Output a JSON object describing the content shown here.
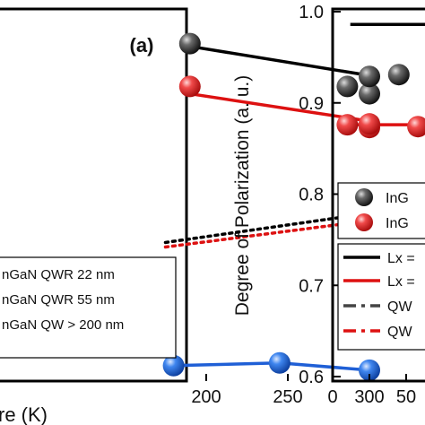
{
  "chart_data": [
    {
      "panel_label": "(a)",
      "type": "line",
      "xlabel": "re (K)",
      "x_ticks": [
        200,
        250,
        300
      ],
      "xlim": [
        175,
        320
      ],
      "ylim": [
        0.6,
        1.0
      ],
      "series": [
        {
          "kind": "line",
          "color": "#000000",
          "x": [
            190,
            300
          ],
          "y": [
            0.962,
            0.93
          ]
        },
        {
          "kind": "line",
          "color": "#dd1111",
          "x": [
            190,
            300
          ],
          "y": [
            0.91,
            0.88
          ]
        },
        {
          "kind": "scatter",
          "color": "#2a2a2a",
          "x": [
            190,
            300
          ],
          "y": [
            0.965,
            0.91
          ]
        },
        {
          "kind": "scatter",
          "color": "#e52222",
          "x": [
            190,
            300
          ],
          "y": [
            0.918,
            0.873
          ]
        },
        {
          "kind": "dotted",
          "color": "#000000",
          "x": [
            175,
            300
          ],
          "y": [
            0.747,
            0.779
          ]
        },
        {
          "kind": "dotted",
          "color": "#dd1111",
          "x": [
            175,
            300
          ],
          "y": [
            0.742,
            0.771
          ]
        },
        {
          "kind": "line",
          "color": "#1f5fd6",
          "x": [
            180,
            245,
            300
          ],
          "y": [
            0.612,
            0.615,
            0.607
          ]
        },
        {
          "kind": "scatter",
          "color": "#2a72e0",
          "x": [
            180,
            245,
            300
          ],
          "y": [
            0.612,
            0.615,
            0.607
          ]
        }
      ],
      "legend": [
        "nGaN QWR 22 nm",
        "nGaN QWR 55 nm",
        "nGaN QW > 200 nm"
      ]
    },
    {
      "type": "line",
      "ylabel": "Degree of Polarization (a. u.)",
      "y_ticks": [
        "1.0",
        "0.9",
        "0.8",
        "0.7",
        "0.6"
      ],
      "ylim": [
        0.6,
        1.0
      ],
      "x_ticks": [
        "0",
        "50"
      ],
      "xlim": [
        0,
        80
      ],
      "series": [
        {
          "kind": "line",
          "color": "#000000",
          "x": [
            12,
            80
          ],
          "y": [
            0.986,
            0.986
          ]
        },
        {
          "kind": "scatter",
          "color": "#2a2a2a",
          "x": [
            10,
            25,
            45
          ],
          "y": [
            0.918,
            0.929,
            0.931
          ]
        },
        {
          "kind": "line",
          "color": "#dd1111",
          "x": [
            10,
            80
          ],
          "y": [
            0.876,
            0.876
          ]
        },
        {
          "kind": "scatter",
          "color": "#e52222",
          "x": [
            10,
            25,
            58
          ],
          "y": [
            0.876,
            0.877,
            0.874
          ]
        }
      ],
      "legend_markers": [
        "InG",
        "InG"
      ],
      "legend_lines": [
        "Lx =",
        "Lx =",
        "QW",
        "QW"
      ]
    }
  ]
}
